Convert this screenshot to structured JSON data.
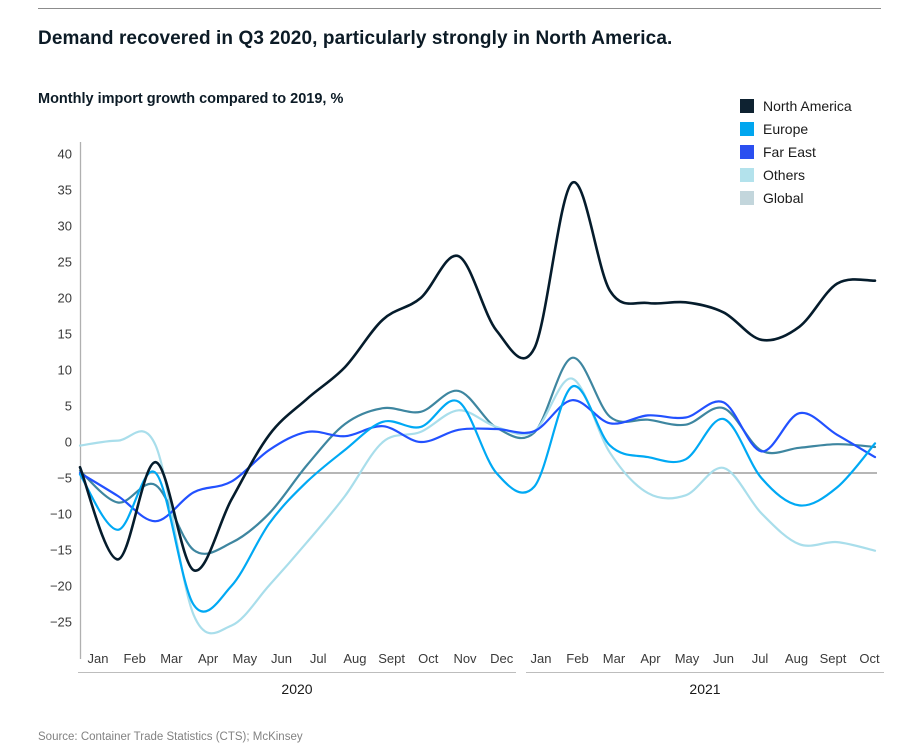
{
  "header": {
    "title": "Demand recovered in Q3 2020, particularly strongly in North America.",
    "subtitle": "Monthly import growth compared to 2019, %"
  },
  "source": "Source: Container Trade Statistics (CTS); McKinsey",
  "chart_data": {
    "type": "line",
    "title": "Monthly import growth compared to 2019, %",
    "grid": false,
    "legend_position": "top-right",
    "ylim": [
      -27,
      42
    ],
    "y_ticks": [
      40,
      35,
      30,
      25,
      20,
      15,
      10,
      5,
      0,
      -5,
      -10,
      -15,
      -20,
      -25
    ],
    "reference_line": -4.3,
    "reference_line_color": "#9e9e9e",
    "axis_color": "#b0b0b0",
    "tick_label_color": "#3a3a3a",
    "year_label_color": "#191919",
    "x_groups": [
      {
        "year": "2020",
        "months": [
          "Jan",
          "Feb",
          "Mar",
          "Apr",
          "May",
          "Jun",
          "Jul",
          "Aug",
          "Sept",
          "Oct",
          "Nov",
          "Dec"
        ]
      },
      {
        "year": "2021",
        "months": [
          "Jan",
          "Feb",
          "Mar",
          "Apr",
          "May",
          "Jun",
          "Jul",
          "Aug",
          "Sept",
          "Oct"
        ]
      }
    ],
    "series": [
      {
        "name": "North America",
        "color": "#051C2C",
        "swatch": "#0E2231",
        "line_width": 2.6,
        "values": [
          -3.5,
          -16.3,
          -2.8,
          -17.8,
          -8,
          1,
          6,
          10.4,
          17,
          20,
          25.8,
          15.5,
          13,
          36,
          21,
          19.3,
          19.4,
          18,
          14.2,
          16,
          22,
          22.4
        ]
      },
      {
        "name": "Europe",
        "color": "#00A9F4",
        "swatch": "#00A6EF",
        "line_width": 2.2,
        "values": [
          -4.5,
          -12.2,
          -4.3,
          -22.6,
          -20,
          -11.3,
          -5.5,
          -1.1,
          2.8,
          2.1,
          5.6,
          -4.3,
          -6.2,
          7.7,
          -0.5,
          -2.1,
          -2.4,
          3.2,
          -5,
          -8.8,
          -6.3,
          -0.2
        ]
      },
      {
        "name": "Far East",
        "color": "#2251FF",
        "swatch": "#2B4FF0",
        "line_width": 2.2,
        "values": [
          -4.3,
          -7.5,
          -11,
          -7,
          -5.5,
          -1.1,
          1.4,
          0.8,
          2.2,
          0,
          1.7,
          1.8,
          1.5,
          5.8,
          2.6,
          3.7,
          3.4,
          5.5,
          -1.3,
          4,
          1,
          -2.1
        ]
      },
      {
        "name": "Others",
        "color": "#A9DEEB",
        "swatch": "#B3E2EC",
        "line_width": 2.2,
        "values": [
          -0.5,
          0.2,
          -0.5,
          -24,
          -25.5,
          -19.9,
          -13.9,
          -7.5,
          0,
          1.4,
          4.4,
          2.1,
          1.5,
          8.8,
          -1.5,
          -7.1,
          -7.4,
          -3.6,
          -9.9,
          -14.2,
          -13.9,
          -15.1
        ]
      },
      {
        "name": "Global",
        "color": "#3E86A0",
        "swatch": "#C3D6DC",
        "line_width": 2.2,
        "values": [
          -4,
          -8.4,
          -6,
          -15,
          -14,
          -9.9,
          -3.2,
          2.5,
          4.7,
          4.2,
          7.1,
          2,
          1.3,
          11.7,
          3.5,
          3.1,
          2.4,
          4.7,
          -1.2,
          -0.8,
          -0.3,
          -0.7
        ]
      }
    ]
  }
}
